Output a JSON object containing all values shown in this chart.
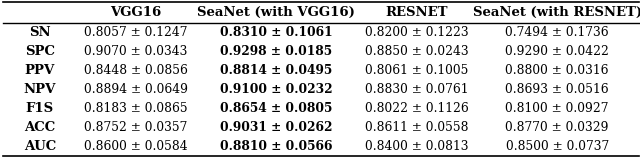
{
  "columns": [
    "",
    "VGG16",
    "SeaNet (with VGG16)",
    "RESNET",
    "SeaNet (with RESNET)"
  ],
  "rows": [
    "SN",
    "SPC",
    "PPV",
    "NPV",
    "F1S",
    "ACC",
    "AUC"
  ],
  "data": [
    [
      "0.8057 ± 0.1247",
      "0.8310 ± 0.1061",
      "0.8200 ± 0.1223",
      "0.7494 ± 0.1736"
    ],
    [
      "0.9070 ± 0.0343",
      "0.9298 ± 0.0185",
      "0.8850 ± 0.0243",
      "0.9290 ± 0.0422"
    ],
    [
      "0.8448 ± 0.0856",
      "0.8814 ± 0.0495",
      "0.8061 ± 0.1005",
      "0.8800 ± 0.0316"
    ],
    [
      "0.8894 ± 0.0649",
      "0.9100 ± 0.0232",
      "0.8830 ± 0.0761",
      "0.8693 ± 0.0516"
    ],
    [
      "0.8183 ± 0.0865",
      "0.8654 ± 0.0805",
      "0.8022 ± 0.1126",
      "0.8100 ± 0.0927"
    ],
    [
      "0.8752 ± 0.0357",
      "0.9031 ± 0.0262",
      "0.8611 ± 0.0558",
      "0.8770 ± 0.0329"
    ],
    [
      "0.8600 ± 0.0584",
      "0.8810 ± 0.0566",
      "0.8400 ± 0.0813",
      "0.8500 ± 0.0737"
    ]
  ],
  "bold_col": 2,
  "background_color": "#ffffff",
  "header_fontsize": 9.5,
  "cell_fontsize": 8.8,
  "row_label_fontsize": 9.5
}
